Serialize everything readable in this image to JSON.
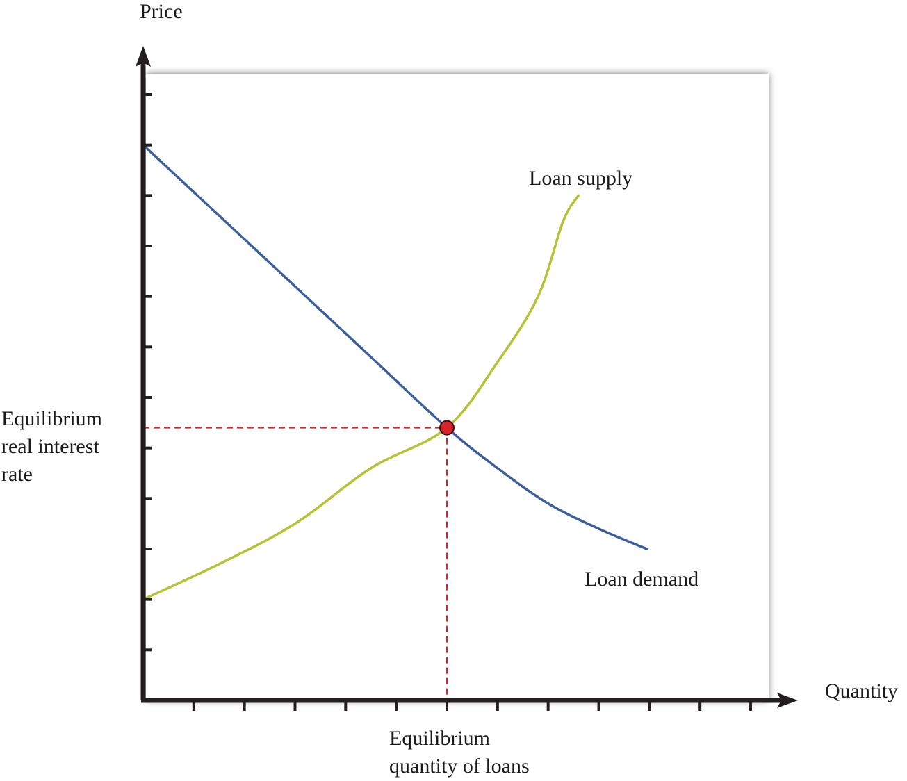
{
  "chart_data": {
    "type": "line",
    "title": "",
    "xlabel": "Quantity",
    "ylabel": "Price",
    "xlim": [
      0,
      12
    ],
    "ylim": [
      0,
      12
    ],
    "x_ticks": [
      1,
      2,
      3,
      4,
      5,
      6,
      7,
      8,
      9,
      10,
      11,
      12
    ],
    "y_ticks": [
      1,
      2,
      3,
      4,
      5,
      6,
      7,
      8,
      9,
      10,
      11,
      12
    ],
    "tick_labels_shown": false,
    "grid": false,
    "legend": "none (series labeled directly on chart)",
    "series": [
      {
        "name": "Loan demand",
        "color": "#3a5f9c",
        "points": [
          [
            0,
            11
          ],
          [
            1.5,
            9.6
          ],
          [
            3,
            8.2
          ],
          [
            4.5,
            6.8
          ],
          [
            6,
            5.4
          ],
          [
            7,
            4.6
          ],
          [
            8,
            3.9
          ],
          [
            9,
            3.4
          ],
          [
            9.95,
            3.0
          ]
        ]
      },
      {
        "name": "Loan supply",
        "color": "#b5c233",
        "points": [
          [
            0,
            2.0
          ],
          [
            1.5,
            2.7
          ],
          [
            3,
            3.5
          ],
          [
            4.5,
            4.6
          ],
          [
            6,
            5.4
          ],
          [
            7,
            6.7
          ],
          [
            7.8,
            8.0
          ],
          [
            8.3,
            9.5
          ],
          [
            8.6,
            10.0
          ]
        ]
      }
    ],
    "equilibrium": {
      "x": 6,
      "y": 5.4,
      "marker_color": "#d9232a",
      "guide_line_color": "#d9232a",
      "guide_line_style": "dashed"
    },
    "annotations": {
      "equilibrium_rate": [
        "Equilibrium",
        "real interest",
        "rate"
      ],
      "equilibrium_quantity": [
        "Equilibrium",
        "quantity of loans"
      ]
    }
  },
  "colors": {
    "axis": "#231f20",
    "panel": "#ffffff",
    "panel_shadow": "#8c8c8c"
  }
}
